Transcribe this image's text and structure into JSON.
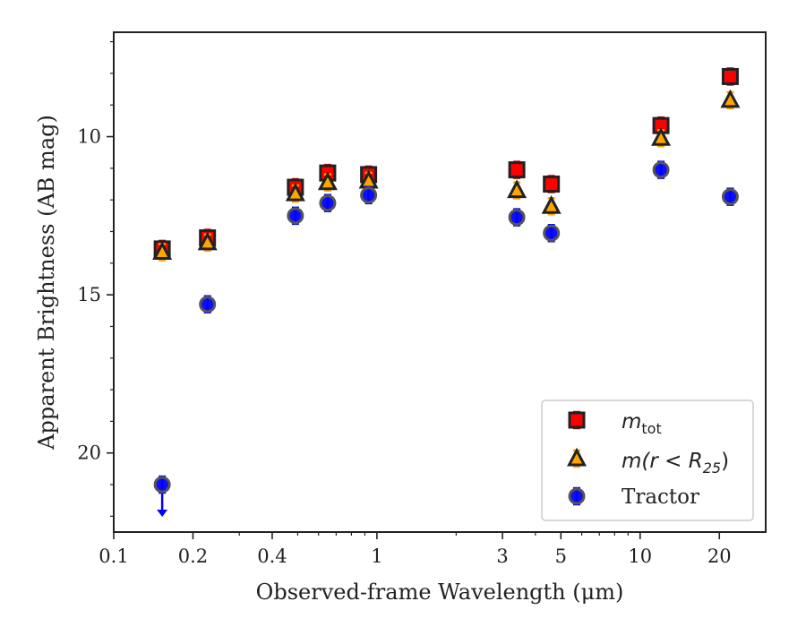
{
  "chart_data": {
    "type": "scatter",
    "title": "",
    "xlabel": "Observed-frame Wavelength (μm)",
    "ylabel": "Apparent Brightness (AB mag)",
    "xscale": "log",
    "xlim": [
      0.1,
      30
    ],
    "ylim": [
      22.5,
      6.7
    ],
    "y_inverted": true,
    "x_ticks": [
      0.1,
      0.2,
      0.4,
      1,
      3,
      5,
      10,
      20
    ],
    "x_tick_labels": [
      "0.1",
      "0.2",
      "0.4",
      "1",
      "3",
      "5",
      "10",
      "20"
    ],
    "y_ticks": [
      10,
      15,
      20
    ],
    "y_tick_labels": [
      "10",
      "15",
      "20"
    ],
    "legend_position": "lower-right",
    "series": [
      {
        "name": "m_tot",
        "label_main": "m",
        "label_sub": "tot",
        "marker": "square",
        "color": "#ff0000",
        "errcolor": "#cc0000",
        "points": [
          {
            "x": 0.1528,
            "y": 13.55
          },
          {
            "x": 0.2271,
            "y": 13.2
          },
          {
            "x": 0.49,
            "y": 11.6
          },
          {
            "x": 0.65,
            "y": 11.15
          },
          {
            "x": 0.93,
            "y": 11.2
          },
          {
            "x": 3.4,
            "y": 11.05
          },
          {
            "x": 4.6,
            "y": 11.5
          },
          {
            "x": 12.0,
            "y": 9.65
          },
          {
            "x": 22.0,
            "y": 8.1
          }
        ]
      },
      {
        "name": "m(r < R25)",
        "label_main": "m(r < R",
        "label_sub": "25",
        "label_end": ")",
        "marker": "triangle",
        "color": "#ffa500",
        "errcolor": "#ffa500",
        "points": [
          {
            "x": 0.1528,
            "y": 13.65
          },
          {
            "x": 0.2271,
            "y": 13.35
          },
          {
            "x": 0.49,
            "y": 11.8
          },
          {
            "x": 0.65,
            "y": 11.45
          },
          {
            "x": 0.93,
            "y": 11.4
          },
          {
            "x": 3.4,
            "y": 11.7
          },
          {
            "x": 4.6,
            "y": 12.2
          },
          {
            "x": 12.0,
            "y": 10.05
          },
          {
            "x": 22.0,
            "y": 8.85
          }
        ]
      },
      {
        "name": "Tractor",
        "marker": "circle",
        "color": "#0000ff",
        "errcolor": "#0000ff",
        "points": [
          {
            "x": 0.1528,
            "y": 21.0,
            "upper_limit": true
          },
          {
            "x": 0.2271,
            "y": 15.3
          },
          {
            "x": 0.49,
            "y": 12.5
          },
          {
            "x": 0.65,
            "y": 12.1
          },
          {
            "x": 0.93,
            "y": 11.85
          },
          {
            "x": 3.4,
            "y": 12.55
          },
          {
            "x": 4.6,
            "y": 13.05
          },
          {
            "x": 12.0,
            "y": 11.05
          },
          {
            "x": 22.0,
            "y": 11.9
          }
        ]
      }
    ]
  }
}
